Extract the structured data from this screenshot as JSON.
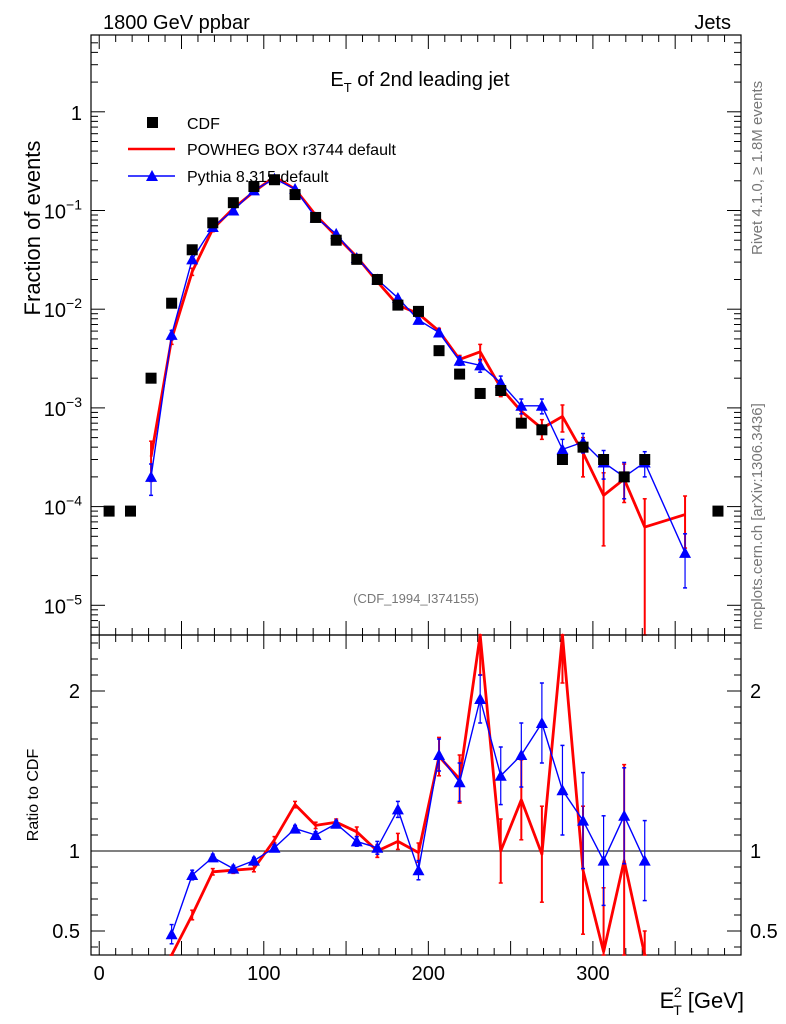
{
  "header": {
    "left": "1800 GeV ppbar",
    "right": "Jets"
  },
  "side": {
    "top": "Rivet 4.1.0, ≥ 1.8M events",
    "bottom": "mcplots.cern.ch [arXiv:1306.3436]"
  },
  "watermark": "(CDF_1994_I374155)",
  "chart_data": [
    {
      "type": "scatter",
      "title": "E_T of 2nd leading jet",
      "title_main": "E",
      "title_sub": "T",
      "title_rest": " of 2nd leading jet",
      "ylabel": "Fraction of events",
      "yscale": "log",
      "ylim": [
        5e-06,
        6
      ],
      "xlim": [
        -5,
        390
      ],
      "ytick_labels": [
        {
          "base": "10",
          "exp": "−5"
        },
        {
          "base": "10",
          "exp": "−4"
        },
        {
          "base": "10",
          "exp": "−3"
        },
        {
          "base": "10",
          "exp": "−2"
        },
        {
          "base": "10",
          "exp": "−1"
        },
        {
          "base": "1",
          "exp": ""
        }
      ],
      "ytick_values": [
        1e-05,
        0.0001,
        0.001,
        0.01,
        0.1,
        1
      ],
      "legend": [
        "CDF",
        "POWHEG BOX r3744 default",
        "Pythia 8.315 default"
      ],
      "series": [
        {
          "name": "CDF",
          "color": "#000000",
          "marker": "square",
          "x": [
            6,
            19,
            31.5,
            44,
            56.5,
            69,
            81.5,
            94,
            106.5,
            119,
            131.5,
            144,
            156.5,
            169,
            181.5,
            194,
            206.5,
            219,
            231.5,
            244,
            256.5,
            269,
            281.5,
            294,
            306.5,
            319,
            331.5,
            376
          ],
          "y": [
            9e-05,
            9e-05,
            0.002,
            0.0115,
            0.04,
            0.075,
            0.12,
            0.175,
            0.205,
            0.145,
            0.085,
            0.05,
            0.032,
            0.02,
            0.011,
            0.0095,
            0.0038,
            0.0022,
            0.0014,
            0.0015,
            0.0007,
            0.0006,
            0.0003,
            0.0004,
            0.0003,
            0.0002,
            0.0003,
            9e-05
          ]
        },
        {
          "name": "POWHEG BOX r3744 default",
          "color": "#ff0000",
          "marker": "none",
          "x": [
            31.5,
            44,
            56.5,
            69,
            81.5,
            94,
            106.5,
            119,
            131.5,
            144,
            156.5,
            169,
            181.5,
            194,
            206.5,
            219,
            231.5,
            244,
            256.5,
            269,
            281.5,
            294,
            306.5,
            319,
            331.5,
            356
          ],
          "y": [
            0.00032,
            0.005,
            0.024,
            0.065,
            0.105,
            0.155,
            0.22,
            0.165,
            0.09,
            0.055,
            0.034,
            0.019,
            0.011,
            0.009,
            0.006,
            0.0031,
            0.0037,
            0.0016,
            0.00092,
            0.00062,
            0.00082,
            0.00035,
            0.00013,
            0.00019,
            6.2e-05,
            8.3e-05
          ],
          "err": [
            0.00014,
            0.0006,
            0.002,
            0.004,
            0.005,
            0.006,
            0.007,
            0.005,
            0.003,
            0.002,
            0.0014,
            0.0008,
            0.0005,
            0.0005,
            0.0004,
            0.0003,
            0.0007,
            0.0003,
            0.00016,
            0.00014,
            0.00025,
            0.00015,
            9e-05,
            8e-05,
            5.8e-05,
            4.5e-05
          ]
        },
        {
          "name": "Pythia 8.315 default",
          "color": "#0000ff",
          "marker": "triangle",
          "x": [
            31.5,
            44,
            56.5,
            69,
            81.5,
            94,
            106.5,
            119,
            131.5,
            144,
            156.5,
            169,
            181.5,
            194,
            206.5,
            219,
            231.5,
            244,
            256.5,
            269,
            281.5,
            294,
            306.5,
            319,
            331.5,
            356
          ],
          "y": [
            0.0002,
            0.0055,
            0.032,
            0.068,
            0.1,
            0.16,
            0.21,
            0.165,
            0.085,
            0.058,
            0.033,
            0.02,
            0.013,
            0.0078,
            0.0058,
            0.003,
            0.0027,
            0.0018,
            0.00105,
            0.00105,
            0.00038,
            0.00045,
            0.00028,
            0.0002,
            0.00028,
            3.4e-05
          ],
          "err": [
            7e-05,
            0.0006,
            0.002,
            0.004,
            0.005,
            0.006,
            0.007,
            0.005,
            0.003,
            0.002,
            0.0014,
            0.0008,
            0.0006,
            0.0005,
            0.0004,
            0.0003,
            0.0004,
            0.0003,
            0.00018,
            0.00018,
            0.0001,
            0.0001,
            9e-05,
            8e-05,
            8e-05,
            1.9e-05
          ]
        }
      ]
    },
    {
      "type": "line",
      "ylabel": "Ratio to CDF",
      "xlabel_main": "E",
      "xlabel_sub": "T",
      "xlabel_sup": "2",
      "xlabel_rest": " [GeV]",
      "xlim": [
        -5,
        390
      ],
      "ylim": [
        0.35,
        2.35
      ],
      "xtick_values": [
        0,
        100,
        200,
        300
      ],
      "xtick_labels": [
        "0",
        "100",
        "200",
        "300"
      ],
      "ytick_values": [
        0.5,
        1,
        2
      ],
      "ytick_labels": [
        "0.5",
        "1",
        "2"
      ],
      "reference_line": 1,
      "series": [
        {
          "name": "POWHEG BOX r3744 default",
          "color": "#ff0000",
          "x": [
            44,
            56.5,
            69,
            81.5,
            94,
            106.5,
            119,
            131.5,
            144,
            156.5,
            169,
            181.5,
            194,
            206.5,
            219,
            231.5,
            244,
            256.5,
            269,
            281.5,
            294,
            306.5,
            319,
            331.5
          ],
          "y": [
            0.3,
            0.6,
            0.87,
            0.88,
            0.89,
            1.07,
            1.29,
            1.16,
            1.18,
            1.12,
            1.0,
            1.06,
            0.99,
            1.59,
            1.45,
            2.4,
            1.0,
            1.32,
            0.98,
            2.4,
            0.88,
            0.37,
            0.94,
            0.2
          ],
          "err": [
            0.04,
            0.03,
            0.02,
            0.02,
            0.02,
            0.02,
            0.02,
            0.02,
            0.02,
            0.03,
            0.04,
            0.05,
            0.06,
            0.12,
            0.15,
            0.3,
            0.2,
            0.25,
            0.3,
            0.35,
            0.4,
            0.4,
            0.6,
            0.3
          ]
        },
        {
          "name": "Pythia 8.315 default",
          "color": "#0000ff",
          "x": [
            44,
            56.5,
            69,
            81.5,
            94,
            106.5,
            119,
            131.5,
            144,
            156.5,
            169,
            181.5,
            194,
            206.5,
            219,
            231.5,
            244,
            256.5,
            269,
            281.5,
            294,
            306.5,
            319,
            331.5
          ],
          "y": [
            0.48,
            0.85,
            0.96,
            0.89,
            0.94,
            1.02,
            1.14,
            1.1,
            1.17,
            1.06,
            1.02,
            1.26,
            0.88,
            1.6,
            1.43,
            1.95,
            1.47,
            1.6,
            1.8,
            1.38,
            1.19,
            0.94,
            1.22,
            0.94
          ],
          "err": [
            0.06,
            0.03,
            0.02,
            0.02,
            0.02,
            0.02,
            0.02,
            0.02,
            0.02,
            0.03,
            0.04,
            0.05,
            0.06,
            0.1,
            0.12,
            0.15,
            0.18,
            0.2,
            0.25,
            0.28,
            0.3,
            0.28,
            0.3,
            0.25
          ]
        }
      ]
    }
  ]
}
